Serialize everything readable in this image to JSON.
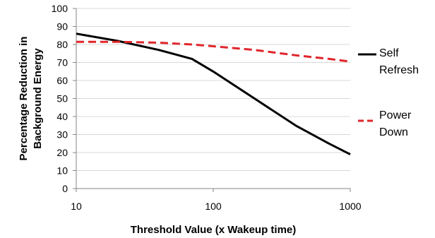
{
  "chart_data": {
    "type": "line",
    "title": "",
    "xlabel": "Threshold Value (x Wakeup time)",
    "ylabel_lines": [
      "Percentage Reduction in",
      "Background Energy"
    ],
    "x_scale": "log",
    "xlim": [
      10,
      1000
    ],
    "ylim": [
      0,
      100
    ],
    "x_ticks": [
      10,
      100,
      1000
    ],
    "x_tick_labels": [
      "10",
      "100",
      "1000"
    ],
    "y_ticks": [
      0,
      10,
      20,
      30,
      40,
      50,
      60,
      70,
      80,
      90,
      100
    ],
    "y_tick_labels": [
      "0",
      "10",
      "20",
      "30",
      "40",
      "50",
      "60",
      "70",
      "80",
      "90",
      "100"
    ],
    "grid": "horizontal",
    "legend_position": "right",
    "series": [
      {
        "name_lines": [
          "Self",
          "Refresh"
        ],
        "color": "#000000",
        "dash": "solid",
        "x": [
          10,
          20,
          40,
          70,
          100,
          200,
          400,
          700,
          1000
        ],
        "y": [
          86,
          82,
          77,
          72,
          65,
          50,
          35,
          25,
          19
        ]
      },
      {
        "name_lines": [
          "Power",
          "Down"
        ],
        "color": "#e0262b",
        "dash": "dashed",
        "x": [
          10,
          20,
          40,
          70,
          100,
          200,
          400,
          700,
          1000
        ],
        "y": [
          81.5,
          81.5,
          81,
          80,
          79,
          77,
          74,
          72,
          70.5
        ]
      }
    ]
  }
}
